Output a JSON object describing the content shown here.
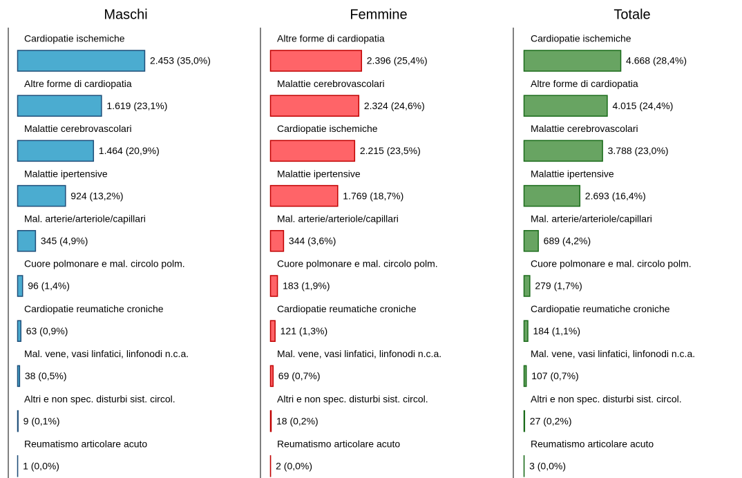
{
  "chart_data": [
    {
      "type": "bar",
      "title": "Maschi",
      "color": "#4bacd0",
      "edge_color": "#1f4e79",
      "xlim": [
        0,
        4400
      ],
      "categories": [
        "Cardiopatie ischemiche",
        "Altre forme di cardiopatia",
        "Malattie cerebrovascolari",
        "Malattie ipertensive",
        "Mal. arterie/arteriole/capillari",
        "Cuore polmonare e mal. circolo polm.",
        "Cardiopatie reumatiche croniche",
        "Mal. vene, vasi linfatici, linfonodi n.c.a.",
        "Altri e non spec. disturbi sist. circol.",
        "Reumatismo articolare acuto"
      ],
      "values": [
        2453,
        1619,
        1464,
        924,
        345,
        96,
        63,
        38,
        9,
        1
      ],
      "value_labels": [
        "2.453 (35,0%)",
        "1.619 (23,1%)",
        "1.464 (20,9%)",
        "924 (13,2%)",
        "345 (4,9%)",
        "96 (1,4%)",
        "63 (0,9%)",
        "38 (0,5%)",
        "9 (0,1%)",
        "1 (0,0%)"
      ]
    },
    {
      "type": "bar",
      "title": "Femmine",
      "color": "#ff6468",
      "edge_color": "#c00000",
      "xlim": [
        0,
        6000
      ],
      "categories": [
        "Altre forme di cardiopatia",
        "Malattie cerebrovascolari",
        "Cardiopatie ischemiche",
        "Malattie ipertensive",
        "Mal. arterie/arteriole/capillari",
        "Cuore polmonare e mal. circolo polm.",
        "Cardiopatie reumatiche croniche",
        "Mal. vene, vasi linfatici, linfonodi n.c.a.",
        "Altri e non spec. disturbi sist. circol.",
        "Reumatismo articolare acuto"
      ],
      "values": [
        2396,
        2324,
        2215,
        1769,
        344,
        183,
        121,
        69,
        18,
        2
      ],
      "value_labels": [
        "2.396 (25,4%)",
        "2.324 (24,6%)",
        "2.215 (23,5%)",
        "1.769 (18,7%)",
        "344 (3,6%)",
        "183 (1,9%)",
        "121 (1,3%)",
        "69 (0,7%)",
        "18 (0,2%)",
        "2 (0,0%)"
      ]
    },
    {
      "type": "bar",
      "title": "Totale",
      "color": "#68a462",
      "edge_color": "#1a6b1a",
      "xlim": [
        0,
        11000
      ],
      "categories": [
        "Cardiopatie ischemiche",
        "Altre forme di cardiopatia",
        "Malattie cerebrovascolari",
        "Malattie ipertensive",
        "Mal. arterie/arteriole/capillari",
        "Cuore polmonare e mal. circolo polm.",
        "Cardiopatie reumatiche croniche",
        "Mal. vene, vasi linfatici, linfonodi n.c.a.",
        "Altri e non spec. disturbi sist. circol.",
        "Reumatismo articolare acuto"
      ],
      "values": [
        4668,
        4015,
        3788,
        2693,
        689,
        279,
        184,
        107,
        27,
        3
      ],
      "value_labels": [
        "4.668 (28,4%)",
        "4.015 (24,4%)",
        "3.788 (23,0%)",
        "2.693 (16,4%)",
        "689 (4,2%)",
        "279 (1,7%)",
        "184 (1,1%)",
        "107 (0,7%)",
        "27 (0,2%)",
        "3 (0,0%)"
      ]
    }
  ]
}
